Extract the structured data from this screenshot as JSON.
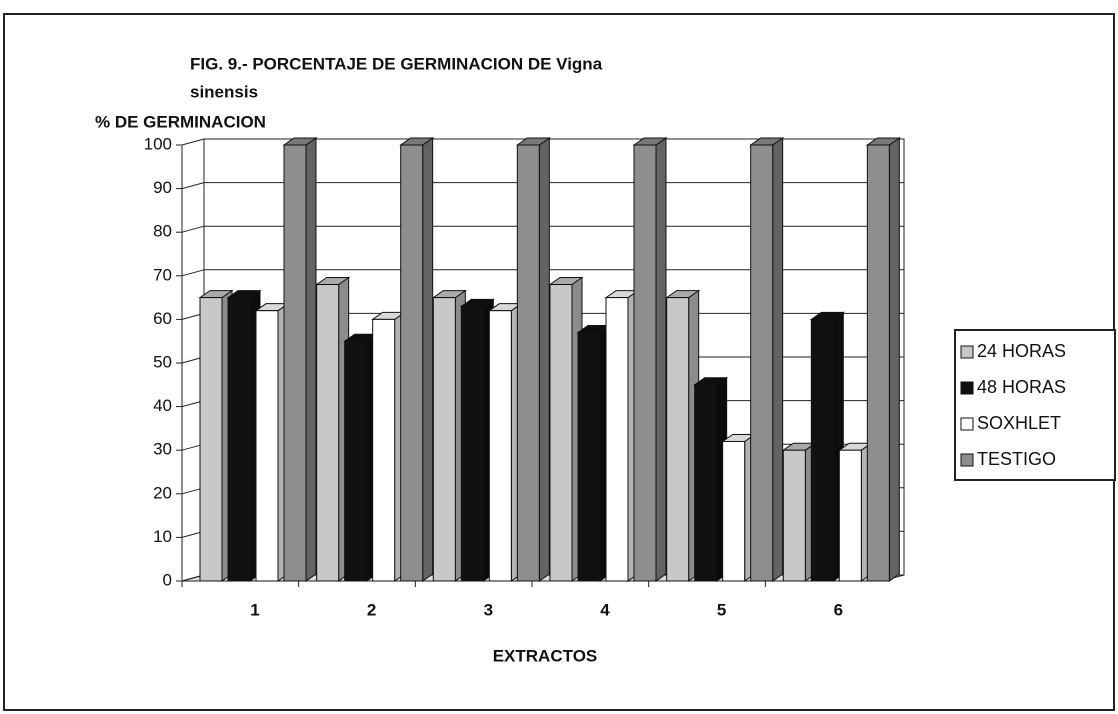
{
  "chart_data": {
    "type": "bar3d",
    "title": [
      "FIG. 9.-  PORCENTAJE DE GERMINACION DE Vigna",
      "sinensis"
    ],
    "y_label": "% DE  GERMINACION",
    "x_label": "EXTRACTOS",
    "categories": [
      "1",
      "2",
      "3",
      "4",
      "5",
      "6"
    ],
    "series": [
      {
        "name": "24 HORAS",
        "color": "#c8c8c8",
        "values": [
          65,
          68,
          65,
          68,
          65,
          30
        ]
      },
      {
        "name": "48 HORAS",
        "color": "#111111",
        "values": [
          65,
          55,
          63,
          57,
          45,
          60
        ]
      },
      {
        "name": "SOXHLET",
        "color": "#ffffff",
        "values": [
          62,
          60,
          62,
          65,
          32,
          30
        ]
      },
      {
        "name": "TESTIGO",
        "color": "#8e8e8e",
        "values": [
          100,
          100,
          100,
          100,
          100,
          100
        ]
      }
    ],
    "ylim": [
      0,
      100
    ],
    "yticks": [
      0,
      10,
      20,
      30,
      40,
      50,
      60,
      70,
      80,
      90,
      100
    ],
    "grid": true,
    "legend": "right"
  }
}
